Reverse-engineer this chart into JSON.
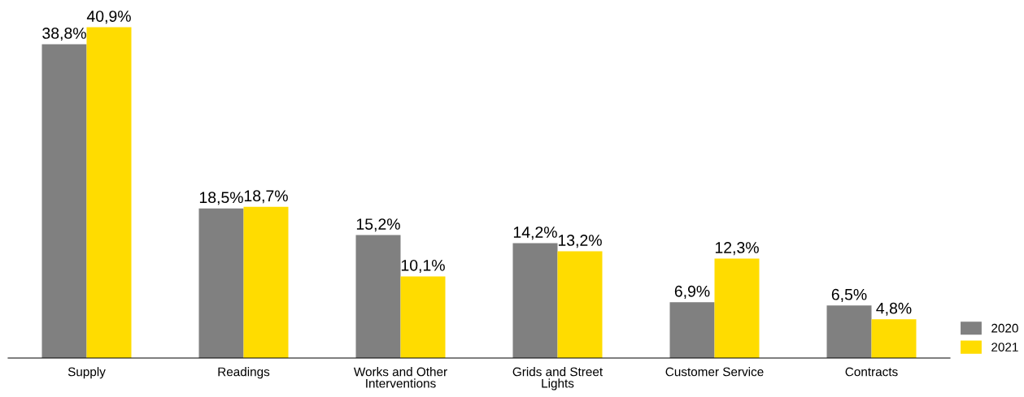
{
  "chart_data": {
    "type": "bar",
    "categories": [
      "Supply",
      "Readings",
      "Works and Other\nInterventions",
      "Grids and Street\nLights",
      "Customer Service",
      "Contracts"
    ],
    "series": [
      {
        "name": "2020",
        "color": "#808080",
        "values": [
          38.8,
          18.5,
          15.2,
          14.2,
          6.9,
          6.5
        ],
        "value_labels": [
          "38,8%",
          "18,5%",
          "15,2%",
          "14,2%",
          "6,9%",
          "6,5%"
        ]
      },
      {
        "name": "2021",
        "color": "#ffdc00",
        "values": [
          40.9,
          18.7,
          10.1,
          13.2,
          12.3,
          4.8
        ],
        "value_labels": [
          "40,9%",
          "18,7%",
          "10,1%",
          "13,2%",
          "12,3%",
          "4,8%"
        ]
      }
    ],
    "tick_labels": "x",
    "grid": false,
    "legend": "bottom right"
  }
}
